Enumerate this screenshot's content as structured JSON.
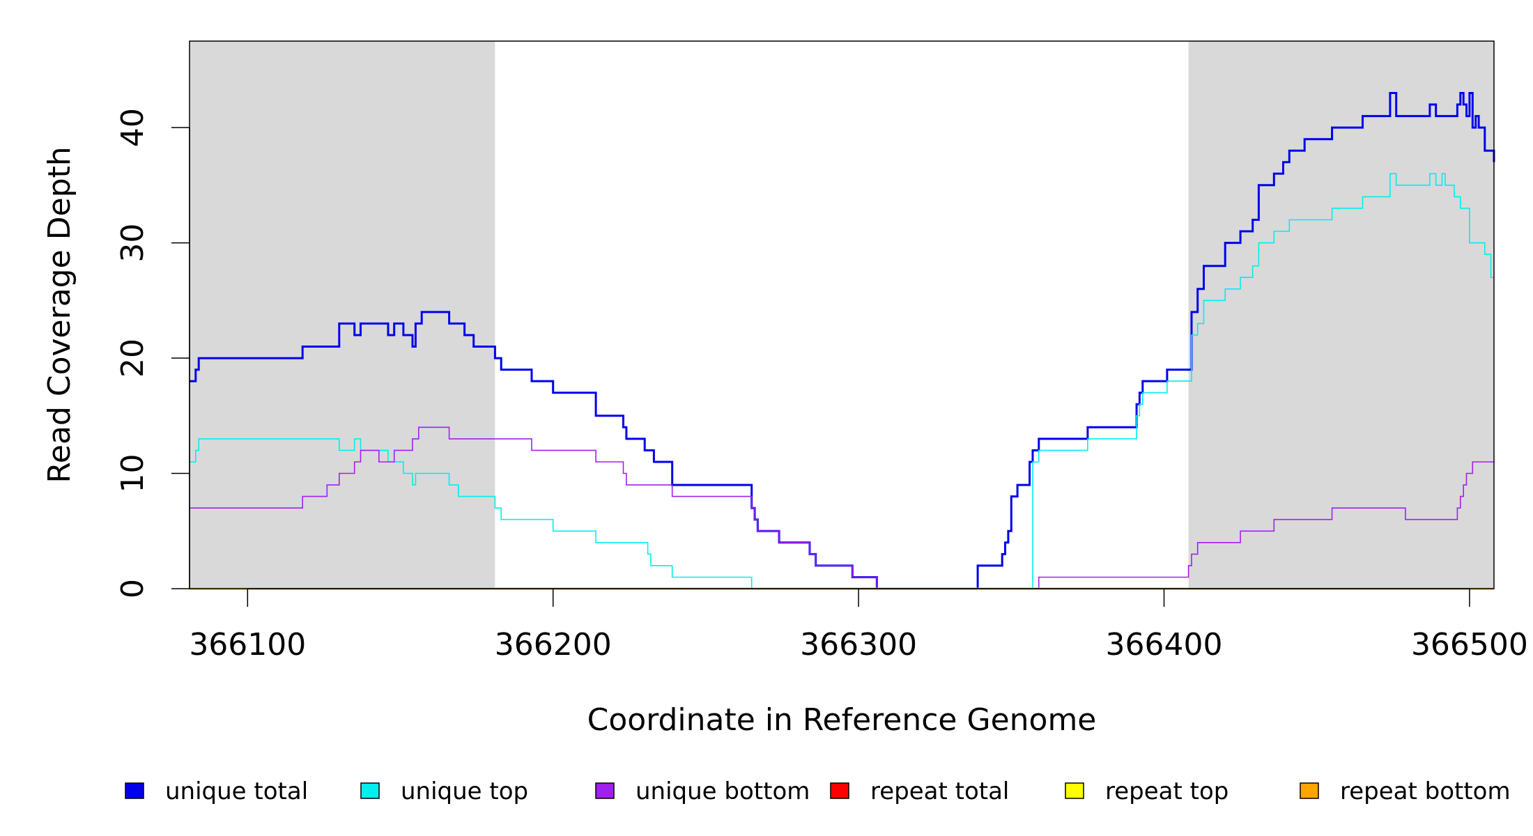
{
  "chart_data": {
    "type": "line",
    "title": "",
    "xlabel": "Coordinate in Reference Genome",
    "ylabel": "Read Coverage Depth",
    "xlim": [
      366081,
      366508
    ],
    "ylim": [
      0,
      47.5
    ],
    "x_ticks": [
      366100,
      366200,
      366300,
      366400,
      366500
    ],
    "x_tick_labels": [
      "366100",
      "366200",
      "366300",
      "366400",
      "366500"
    ],
    "y_ticks": [
      0,
      10,
      20,
      30,
      40
    ],
    "y_tick_labels": [
      "0",
      "10",
      "20",
      "30",
      "40"
    ],
    "grid": false,
    "legend_position": "bottom",
    "shaded_regions": [
      {
        "x_start": 366081,
        "x_end": 366181,
        "color": "#d9d9d9"
      },
      {
        "x_start": 366408,
        "x_end": 366508,
        "color": "#d9d9d9"
      }
    ],
    "series": [
      {
        "name": "unique total",
        "color": "#0000ee",
        "step": true,
        "x": [
          366081,
          366083,
          366084,
          366118,
          366130,
          366135,
          366137,
          366146,
          366148,
          366151,
          366154,
          366155,
          366157,
          366166,
          366171,
          366174,
          366181,
          366183,
          366193,
          366200,
          366214,
          366223,
          366224,
          366230,
          366233,
          366239,
          366265,
          366266,
          366267,
          366268,
          366274,
          366284,
          366286,
          366298,
          366306,
          366339,
          366347,
          366348,
          366349,
          366350,
          366352,
          366356,
          366357,
          366359,
          366375,
          366391,
          366392,
          366393,
          366401,
          366409,
          366411,
          366413,
          366420,
          366425,
          366429,
          366431,
          366436,
          366439,
          366441,
          366446,
          366455,
          366465,
          366474,
          366476,
          366479,
          366487,
          366489,
          366496,
          366497,
          366498,
          366499,
          366500,
          366501,
          366502,
          366503,
          366505,
          366508
        ],
        "y": [
          18,
          19,
          20,
          21,
          23,
          22,
          23,
          22,
          23,
          22,
          21,
          23,
          24,
          23,
          22,
          21,
          20,
          19,
          18,
          17,
          15,
          14,
          13,
          12,
          11,
          9,
          7,
          6,
          5,
          5,
          4,
          3,
          2,
          1,
          0,
          2,
          3,
          4,
          5,
          8,
          9,
          11,
          12,
          13,
          14,
          16,
          17,
          18,
          19,
          24,
          26,
          28,
          30,
          31,
          32,
          35,
          36,
          37,
          38,
          39,
          40,
          41,
          43,
          41,
          41,
          42,
          41,
          42,
          43,
          42,
          41,
          43,
          40,
          41,
          40,
          38,
          37
        ]
      },
      {
        "name": "unique top",
        "color": "#00eeee",
        "step": true,
        "x": [
          366081,
          366083,
          366084,
          366126,
          366130,
          366135,
          366137,
          366146,
          366148,
          366151,
          366154,
          366155,
          366166,
          366169,
          366181,
          366183,
          366193,
          366200,
          366214,
          366231,
          366232,
          366233,
          366239,
          366265,
          366306,
          366339,
          366347,
          366348,
          366349,
          366350,
          366352,
          366356,
          366357,
          366359,
          366375,
          366391,
          366392,
          366393,
          366401,
          366409,
          366411,
          366413,
          366420,
          366425,
          366429,
          366431,
          366436,
          366439,
          366441,
          366446,
          366455,
          366465,
          366474,
          366476,
          366479,
          366487,
          366489,
          366491,
          366492,
          366495,
          366497,
          366500,
          366505,
          366507,
          366508
        ],
        "y": [
          11,
          12,
          13,
          13,
          12,
          13,
          12,
          11,
          11,
          10,
          9,
          10,
          9,
          8,
          7,
          6,
          6,
          5,
          4,
          3,
          2,
          2,
          1,
          0,
          0,
          0,
          0,
          0,
          0,
          0,
          0,
          0,
          11,
          12,
          13,
          15,
          16,
          17,
          18,
          22,
          23,
          25,
          26,
          27,
          28,
          30,
          31,
          31,
          32,
          32,
          33,
          34,
          36,
          35,
          35,
          36,
          35,
          36,
          35,
          34,
          33,
          30,
          29,
          27,
          27
        ]
      },
      {
        "name": "unique bottom",
        "color": "#a020f0",
        "step": true,
        "x": [
          366081,
          366118,
          366126,
          366130,
          366135,
          366137,
          366143,
          366146,
          366148,
          366154,
          366156,
          366166,
          366193,
          366214,
          366223,
          366224,
          366239,
          366265,
          366266,
          366267,
          366268,
          366274,
          366284,
          366286,
          366298,
          366306,
          366359,
          366408,
          366409,
          366411,
          366425,
          366436,
          366441,
          366455,
          366465,
          366479,
          366496,
          366497,
          366498,
          366499,
          366501,
          366503,
          366508
        ],
        "y": [
          7,
          8,
          9,
          10,
          11,
          12,
          11,
          11,
          12,
          13,
          14,
          13,
          12,
          11,
          10,
          9,
          8,
          7,
          6,
          5,
          5,
          4,
          3,
          2,
          1,
          0,
          1,
          2,
          3,
          4,
          5,
          6,
          6,
          7,
          7,
          6,
          7,
          8,
          9,
          10,
          11,
          11,
          11
        ]
      },
      {
        "name": "repeat total",
        "color": "#ff0000",
        "step": true,
        "x": [
          366081,
          366508
        ],
        "y": [
          0,
          0
        ]
      },
      {
        "name": "repeat top",
        "color": "#ffff00",
        "step": true,
        "x": [
          366081,
          366508
        ],
        "y": [
          0,
          0
        ]
      },
      {
        "name": "repeat bottom",
        "color": "#ffa500",
        "step": true,
        "x": [
          366081,
          366508
        ],
        "y": [
          0,
          0
        ]
      }
    ]
  }
}
